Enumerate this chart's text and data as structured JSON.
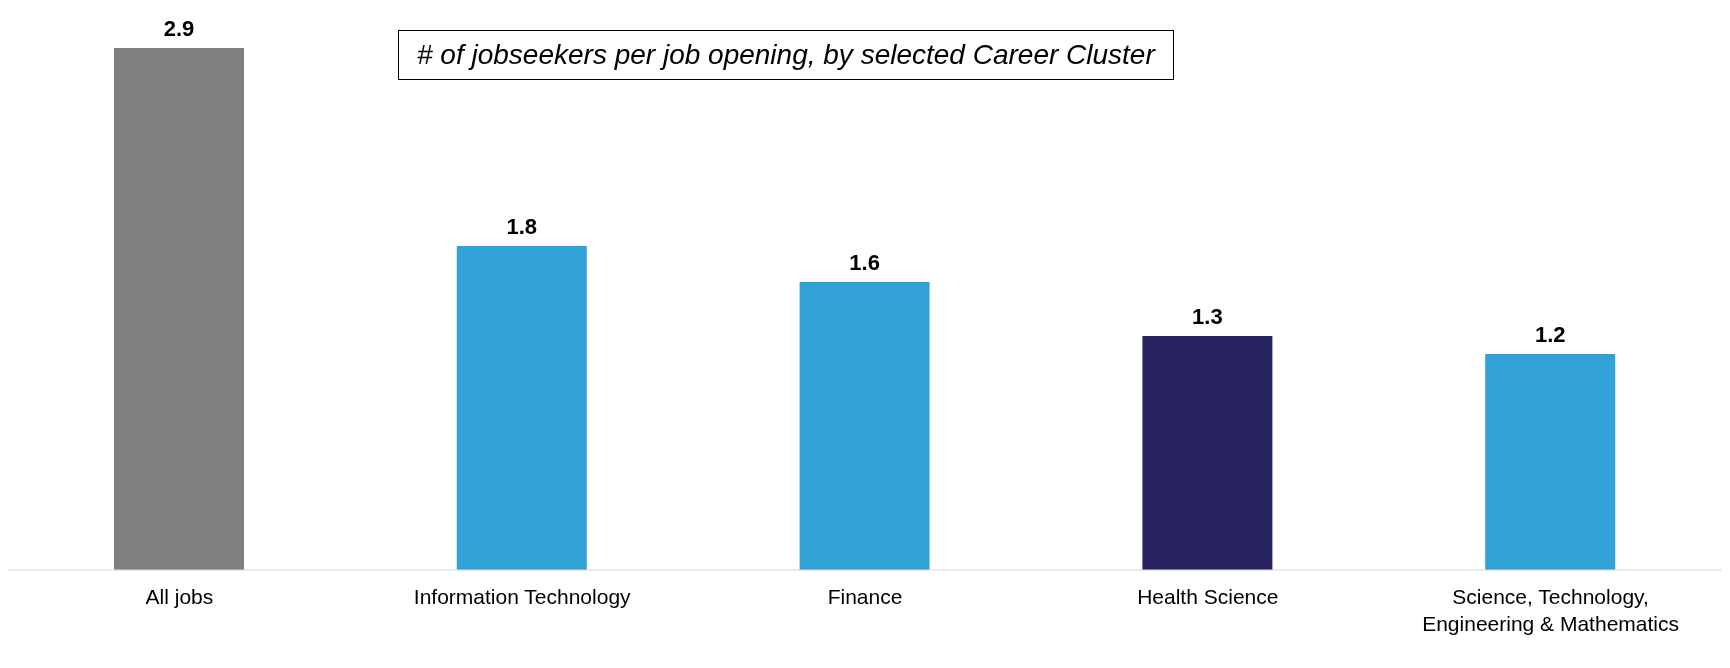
{
  "chart_data": {
    "type": "bar",
    "title": "# of jobseekers per job opening, by selected Career Cluster",
    "categories": [
      "All jobs",
      "Information Technology",
      "Finance",
      "Health Science",
      "Science, Technology, Engineering & Mathematics"
    ],
    "values": [
      2.9,
      1.8,
      1.6,
      1.3,
      1.2
    ],
    "colors": [
      "#7f7f7f",
      "#31a2d8",
      "#31a2d8",
      "#27235e",
      "#31a2d8"
    ],
    "data_labels": true,
    "grid": false,
    "legend": false
  }
}
